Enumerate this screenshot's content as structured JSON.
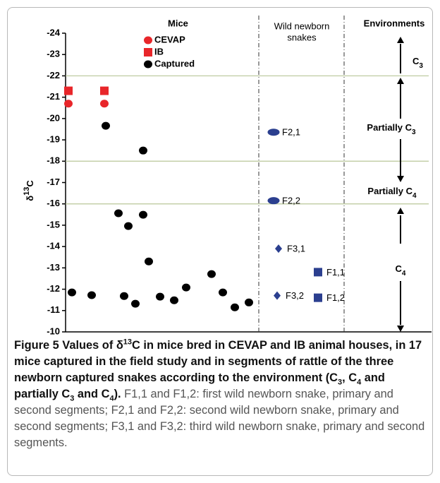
{
  "chart_data": {
    "type": "scatter",
    "ylabel": [
      {
        "text": "δ"
      },
      {
        "text": "13",
        "sup": true
      },
      {
        "text": "C"
      }
    ],
    "ylim": [
      -10,
      -24
    ],
    "yticks": [
      -24,
      -23,
      -22,
      -21,
      -20,
      -19,
      -18,
      -17,
      -16,
      -15,
      -14,
      -13,
      -12,
      -11,
      -10
    ],
    "legend_title": "Mice",
    "series": [
      {
        "name": "CEVAP",
        "color": "#e8262a",
        "marker": "circle",
        "values": [
          -20.7,
          -20.7
        ]
      },
      {
        "name": "IB",
        "color": "#e8262a",
        "marker": "square",
        "values": [
          -21.3,
          -21.3
        ]
      },
      {
        "name": "Captured",
        "color": "#000000",
        "marker": "circle",
        "values": [
          -11.85,
          -11.72,
          -19.66,
          -15.56,
          -11.68,
          -14.96,
          -11.32,
          -18.5,
          -15.49,
          -13.3,
          -11.65,
          -11.48,
          -12.08,
          -12.71,
          -11.85,
          -11.15,
          -11.38
        ]
      }
    ],
    "snakes_title": [
      "Wild newborn",
      "snakes"
    ],
    "snakes": [
      {
        "name": "F2,1",
        "color": "#2b3f8f",
        "marker": "ellipse",
        "value": -19.36
      },
      {
        "name": "F2,2",
        "color": "#2b3f8f",
        "marker": "ellipse",
        "value": -16.15
      },
      {
        "name": "F3,1",
        "color": "#2b3f8f",
        "marker": "diamond",
        "value": -13.9
      },
      {
        "name": "F3,2",
        "color": "#2b3f8f",
        "marker": "diamond",
        "value": -11.7
      },
      {
        "name": "F1,1",
        "color": "#2b3f8f",
        "marker": "square",
        "value": -12.8
      },
      {
        "name": "F1,2",
        "color": "#2b3f8f",
        "marker": "square",
        "value": -11.6
      }
    ],
    "boundaries": [
      -22,
      -18,
      -16
    ],
    "boundary_color": "#b9c79a",
    "environments_title": "Environments",
    "environments": [
      [
        {
          "text": "C"
        },
        {
          "text": "3",
          "sub": true
        }
      ],
      [
        {
          "text": "Partially C"
        },
        {
          "text": "3",
          "sub": true
        }
      ],
      [
        {
          "text": "Partially C"
        },
        {
          "text": "4",
          "sub": true
        }
      ],
      [
        {
          "text": "C"
        },
        {
          "text": "4",
          "sub": true
        }
      ]
    ]
  },
  "caption": [
    {
      "text": "Figure 5 Values of δ",
      "bold": true
    },
    {
      "text": "13",
      "bold": true,
      "sup": true
    },
    {
      "text": "C in mice bred in CEVAP and IB animal houses, in 17 mice captured in the field study and in segments of rattle of the three newborn captured snakes according to the environment (C",
      "bold": true
    },
    {
      "text": "3",
      "bold": true,
      "sub": true
    },
    {
      "text": ", C",
      "bold": true
    },
    {
      "text": "4",
      "bold": true,
      "sub": true
    },
    {
      "text": " and partially C",
      "bold": true
    },
    {
      "text": "3",
      "bold": true,
      "sub": true
    },
    {
      "text": " and C",
      "bold": true
    },
    {
      "text": "4",
      "bold": true,
      "sub": true
    },
    {
      "text": ").",
      "bold": true
    },
    {
      "text": " F1,1 and F1,2: first wild newborn snake, primary and second segments; F2,1 and F2,2: second wild newborn snake, primary and second segments; F3,1 and F3,2: third wild newborn snake, primary and second segments."
    }
  ]
}
